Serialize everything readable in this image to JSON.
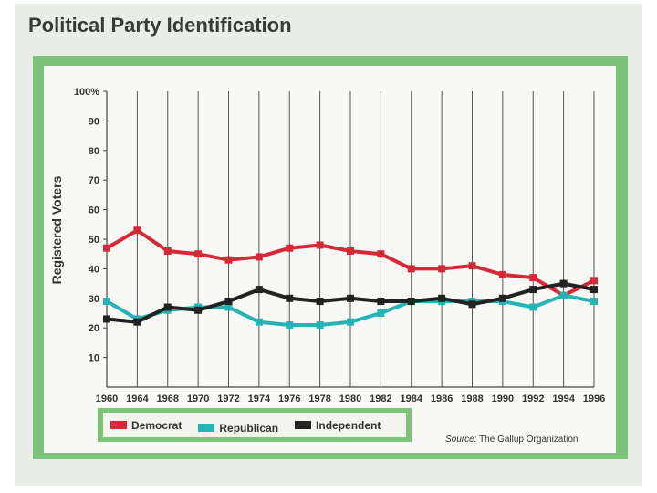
{
  "title": "Political Party Identification",
  "source": {
    "label": "Source:",
    "text": "The Gallup Organization"
  },
  "colors": {
    "Democrat": "#d42a37",
    "Republican": "#26b3b5",
    "Independent": "#222222"
  },
  "chart_data": {
    "type": "line",
    "title": "Political Party Identification",
    "xlabel": "",
    "ylabel": "Registered Voters",
    "ylim": [
      0,
      100
    ],
    "y_ticks": [
      "10",
      "20",
      "30",
      "40",
      "50",
      "60",
      "70",
      "80",
      "90",
      "100%"
    ],
    "x": [
      "1960",
      "1964",
      "1968",
      "1970",
      "1972",
      "1974",
      "1976",
      "1978",
      "1980",
      "1982",
      "1984",
      "1986",
      "1988",
      "1990",
      "1992",
      "1994",
      "1996"
    ],
    "grid": "vertical",
    "legend": "bottom",
    "series": [
      {
        "name": "Democrat",
        "values": [
          47,
          53,
          46,
          45,
          43,
          44,
          47,
          48,
          46,
          45,
          40,
          40,
          41,
          38,
          37,
          31,
          36
        ]
      },
      {
        "name": "Republican",
        "values": [
          29,
          23,
          26,
          27,
          27,
          22,
          21,
          21,
          22,
          25,
          29,
          29,
          29,
          29,
          27,
          31,
          29
        ]
      },
      {
        "name": "Independent",
        "values": [
          23,
          22,
          27,
          26,
          29,
          33,
          30,
          29,
          30,
          29,
          29,
          30,
          28,
          30,
          33,
          35,
          33
        ]
      }
    ]
  }
}
